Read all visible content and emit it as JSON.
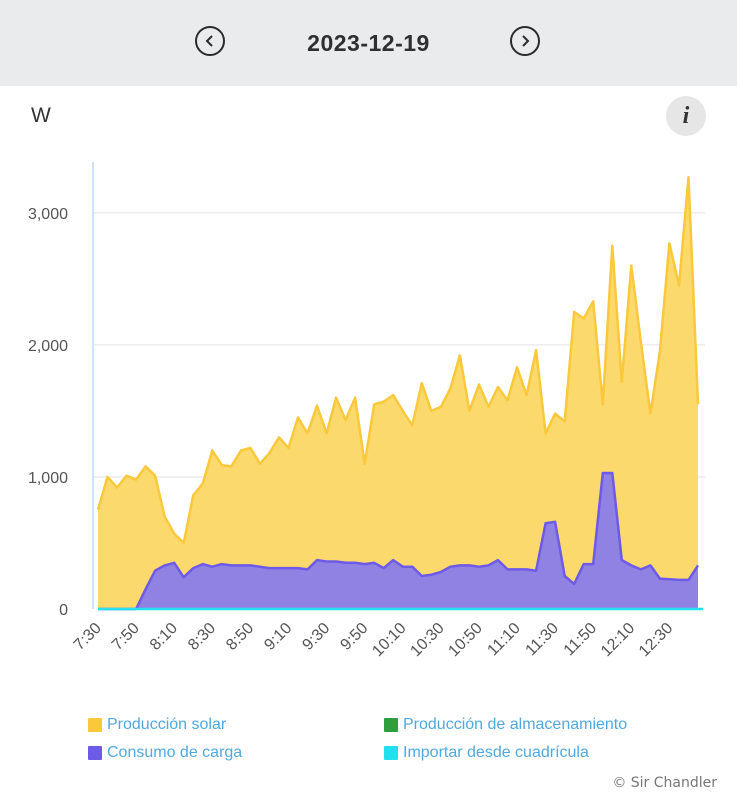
{
  "header": {
    "date": "2023-12-19"
  },
  "unit_label": "W",
  "info_label": "i",
  "watermark": "© Sir Chandler",
  "chart_data": {
    "type": "area",
    "ylabel": "W",
    "ylim": [
      0,
      3400
    ],
    "yticks": [
      0,
      1000,
      2000,
      3000
    ],
    "ytick_labels": [
      "0",
      "1,000",
      "2,000",
      "3,000"
    ],
    "x_start": "7:30",
    "x_end": "12:45",
    "xtick_labels": [
      "7:30",
      "7:50",
      "8:10",
      "8:30",
      "8:50",
      "9:10",
      "9:30",
      "9:50",
      "10:10",
      "10:30",
      "10:50",
      "11:10",
      "11:30",
      "11:50",
      "12:10",
      "12:30"
    ],
    "legend": "bottom",
    "series": [
      {
        "name": "Producción solar",
        "color": "#f9c93b",
        "fill": "#fcd96c",
        "values": [
          750,
          1000,
          920,
          1010,
          980,
          1080,
          1010,
          700,
          570,
          500,
          860,
          950,
          1200,
          1090,
          1080,
          1200,
          1220,
          1100,
          1180,
          1300,
          1220,
          1450,
          1330,
          1540,
          1330,
          1600,
          1430,
          1600,
          1100,
          1550,
          1570,
          1620,
          1500,
          1390,
          1710,
          1500,
          1530,
          1670,
          1920,
          1500,
          1700,
          1530,
          1680,
          1580,
          1830,
          1620,
          1960,
          1330,
          1480,
          1420,
          2250,
          2200,
          2330,
          1550,
          2750,
          1720,
          2600,
          2020,
          1480,
          1950,
          2770,
          2450,
          3270,
          1550
        ]
      },
      {
        "name": "Consumo de carga",
        "color": "#6d5ae8",
        "fill": "#8f82e3",
        "values": [
          0,
          0,
          0,
          0,
          0,
          150,
          290,
          330,
          350,
          240,
          310,
          340,
          320,
          340,
          330,
          330,
          330,
          320,
          310,
          310,
          310,
          310,
          300,
          370,
          360,
          360,
          350,
          350,
          340,
          350,
          310,
          370,
          320,
          320,
          250,
          260,
          280,
          320,
          330,
          330,
          320,
          330,
          370,
          300,
          300,
          300,
          290,
          650,
          660,
          250,
          190,
          340,
          340,
          1030,
          1030,
          370,
          330,
          300,
          330,
          230,
          225,
          220,
          220,
          330
        ]
      },
      {
        "name": "Producción de almacenamiento",
        "color": "#2e9e3e"
      },
      {
        "name": "Importar desde cuadrícula",
        "color": "#22e0ee"
      }
    ]
  }
}
